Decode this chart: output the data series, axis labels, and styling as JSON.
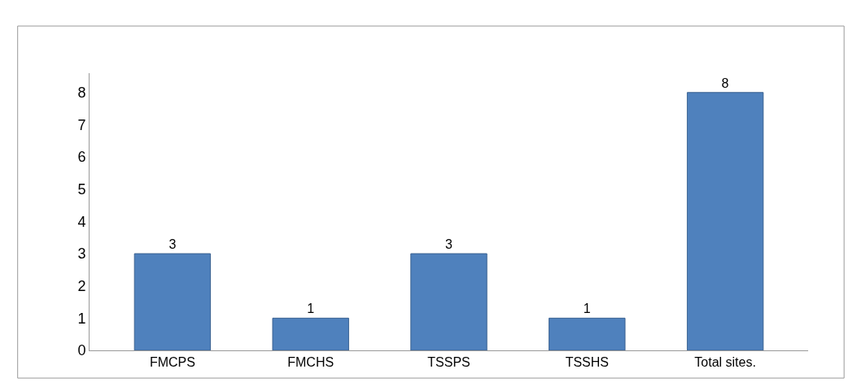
{
  "chart_data": {
    "type": "bar",
    "categories": [
      "FMCPS",
      "FMCHS",
      "TSSPS",
      "TSSHS",
      "Total sites."
    ],
    "values": [
      3,
      1,
      3,
      1,
      8
    ],
    "color": "#4f81bd",
    "ylim": [
      0,
      8.6
    ],
    "yticks": [
      0,
      1,
      2,
      3,
      4,
      5,
      6,
      7,
      8
    ],
    "data_labels": true,
    "legend": false
  }
}
